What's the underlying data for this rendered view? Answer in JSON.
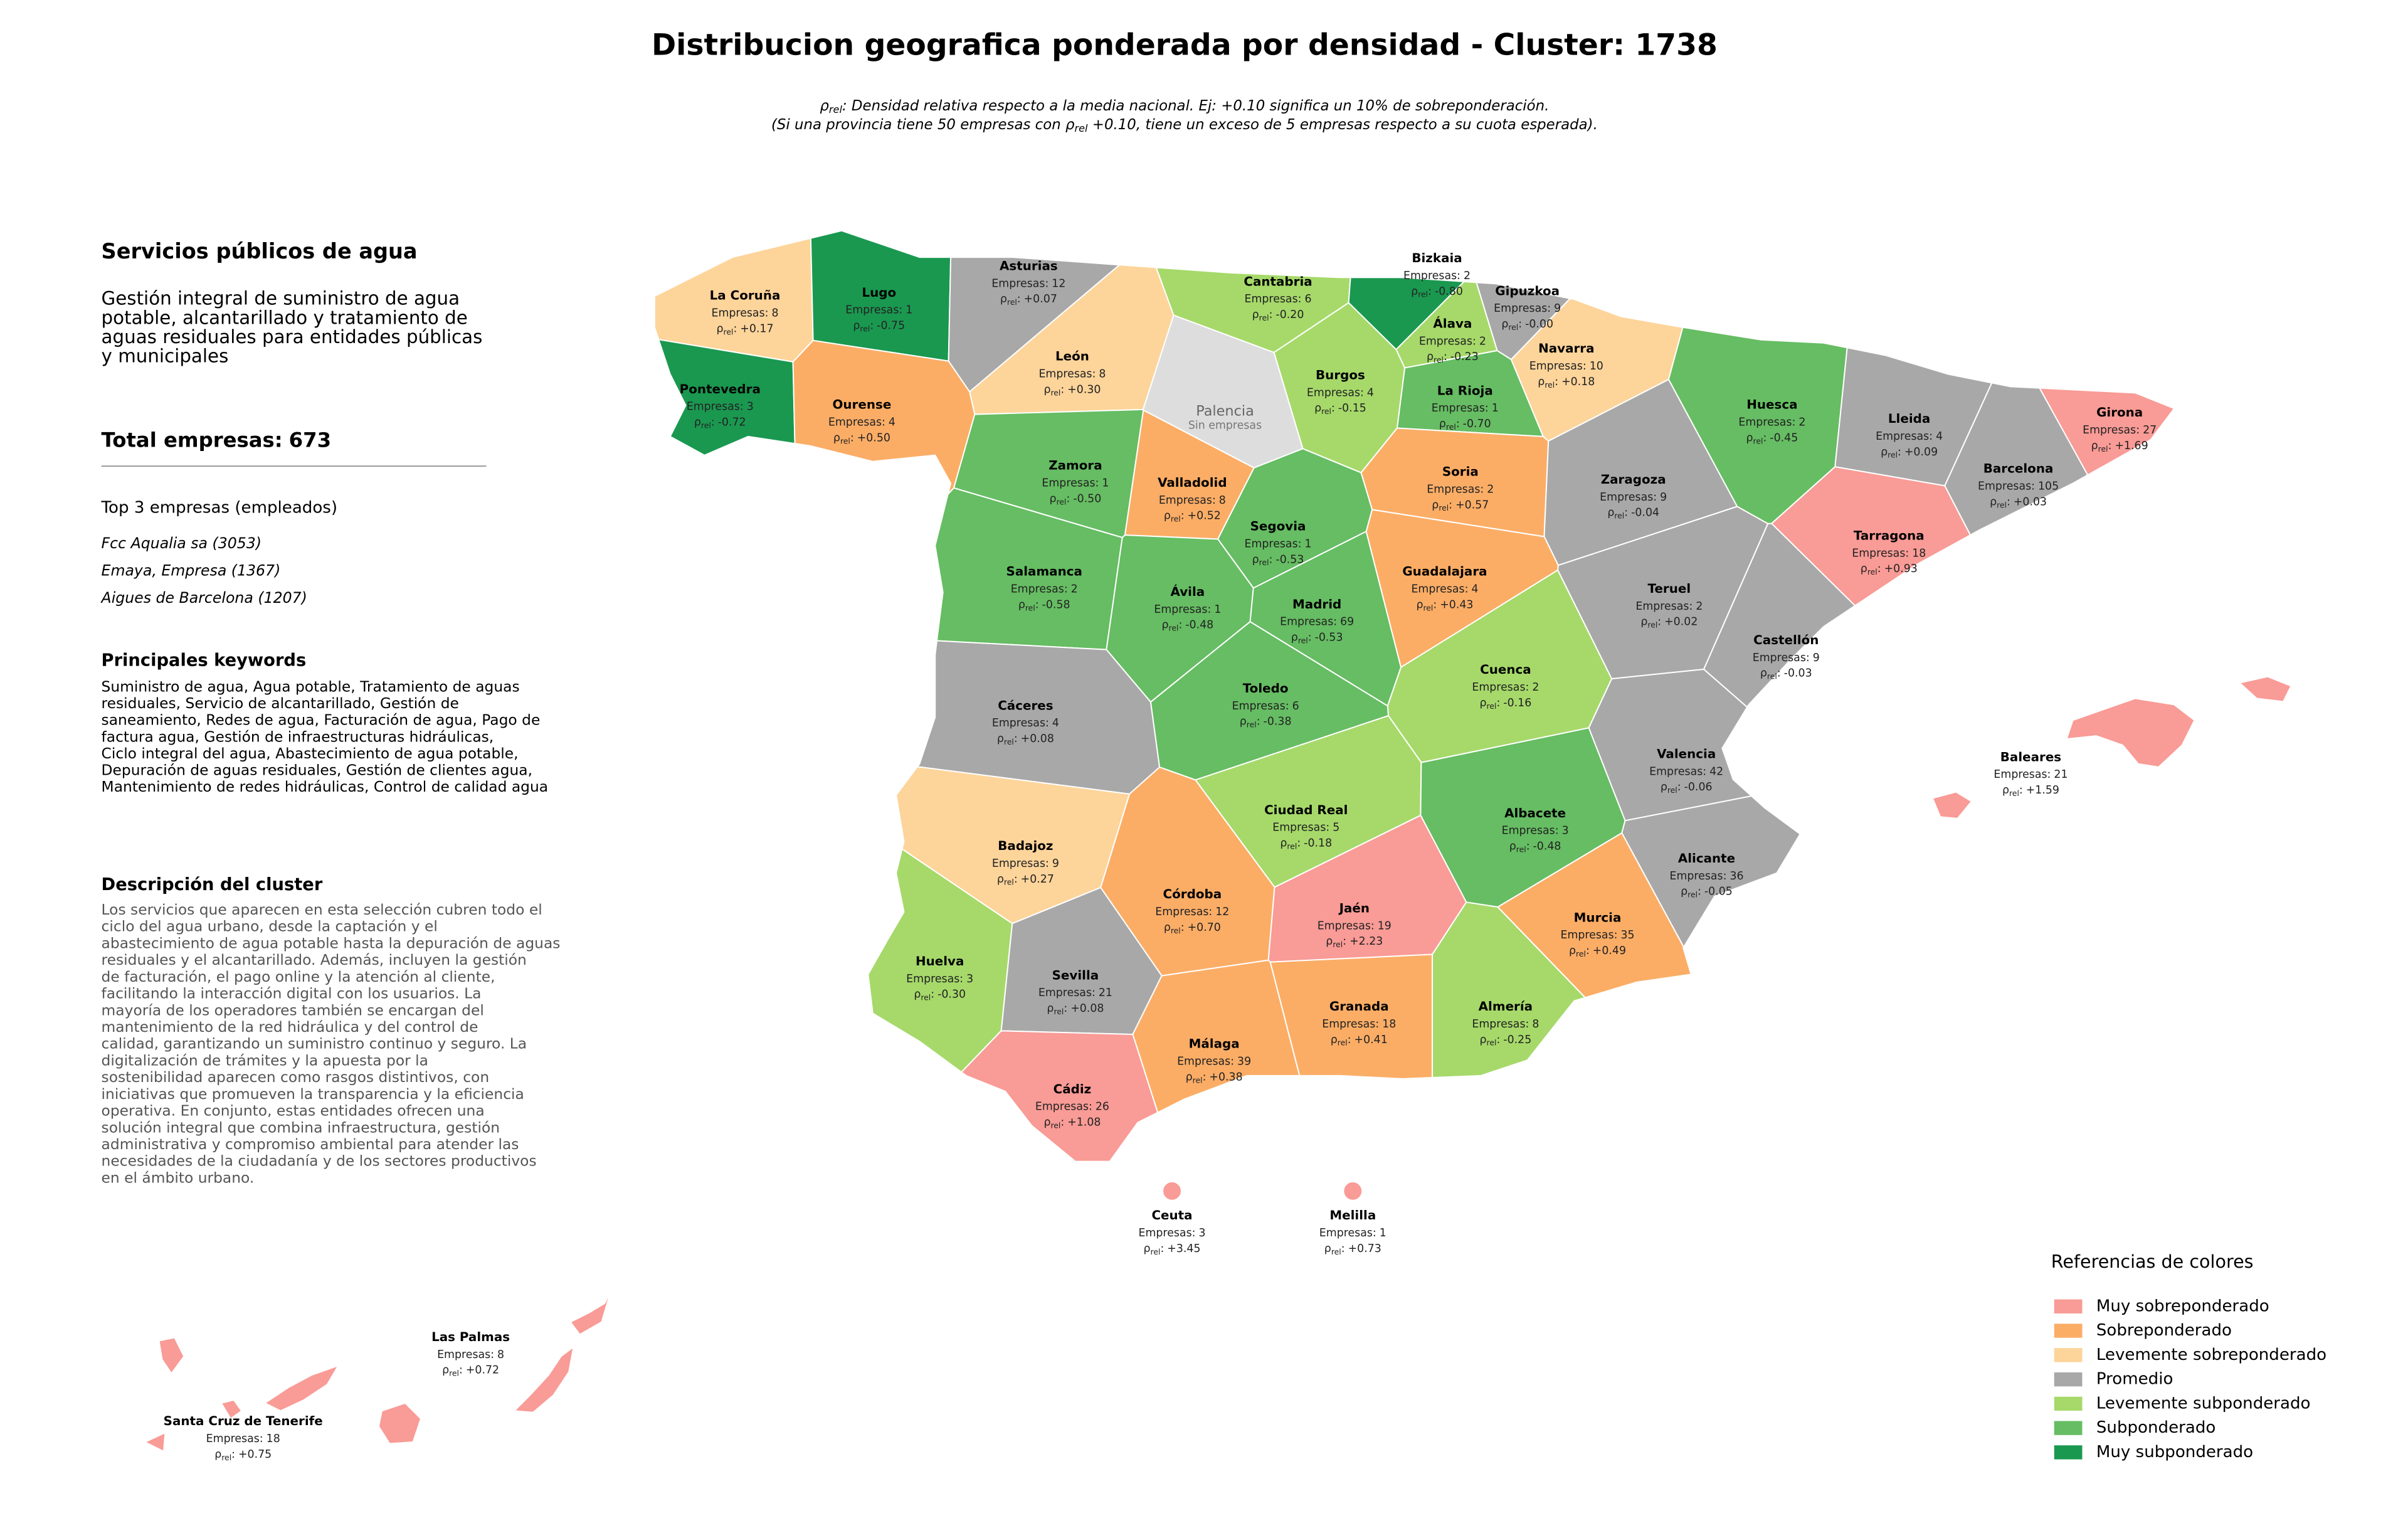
{
  "header": {
    "title": "Distribucion geografica ponderada por densidad - Cluster: 1738",
    "subtitle": [
      {
        "before": "",
        "symbol": "ρ",
        "sub": "rel",
        "after": ": Densidad relativa respecto a la media nacional. Ej: +0.10 significa un 10% de sobreponderación."
      },
      {
        "before": "(Si una provincia tiene 50 empresas con ",
        "symbol": "ρ",
        "sub": "rel",
        "after": " +0.10, tiene un exceso de 5 empresas respecto a su cuota esperada)."
      }
    ]
  },
  "panel": {
    "title": "Servicios públicos de agua",
    "description": [
      "Gestión integral de suministro de agua",
      "potable, alcantarillado y tratamiento de",
      "aguas residuales para entidades públicas",
      "y municipales"
    ],
    "total_label": "Total empresas:",
    "total": 673,
    "top_heading": "Top 3 empresas (empleados)",
    "top": [
      "Fcc Aqualia sa (3053)",
      "Emaya, Empresa (1367)",
      "Aigues de Barcelona (1207)"
    ],
    "keywords_heading": "Principales keywords",
    "keywords": [
      "Suministro de agua, Agua potable, Tratamiento de aguas",
      "residuales, Servicio de alcantarillado, Gestión de",
      "saneamiento, Redes de agua, Facturación de agua, Pago de",
      "factura agua, Gestión de infraestructuras hidráulicas,",
      "Ciclo integral del agua, Abastecimiento de agua potable,",
      "Depuración de aguas residuales, Gestión de clientes agua,",
      "Mantenimiento de redes hidráulicas, Control de calidad agua"
    ],
    "cluster_heading": "Descripción del cluster",
    "cluster_text": [
      "Los servicios que aparecen en esta selección cubren todo el",
      "ciclo del agua urbano, desde la captación y el",
      "abastecimiento de agua potable hasta la depuración de aguas",
      "residuales y el alcantarillado. Además, incluyen la gestión",
      "de facturación, el pago online y la atención al cliente,",
      "facilitando la interacción digital con los usuarios. La",
      "mayoría de los operadores también se encargan del",
      "mantenimiento de la red hidráulica y del control de",
      "calidad, garantizando un suministro continuo y seguro. La",
      "digitalización de trámites y la apuesta por la",
      "sostenibilidad aparecen como rasgos distintivos, con",
      "iniciativas que promueven la transparencia y la eficiencia",
      "operativa. En conjunto, estas entidades ofrecen una",
      "solución integral que combina infraestructura, gestión",
      "administrativa y compromiso ambiental para atender las",
      "necesidades de la ciudadanía y de los sectores productivos",
      "en el ámbito urbano."
    ]
  },
  "map": {
    "empresas_label": "Empresas:",
    "rho_symbol": "ρ",
    "rho_sub": "rel",
    "rho_sep": ":",
    "provinces": [
      {
        "name": "La Coruña",
        "empresas": 8,
        "rho": 0.17,
        "rho_label": "+0.17",
        "color": "#fdd49a"
      },
      {
        "name": "Lugo",
        "empresas": 1,
        "rho": -0.75,
        "rho_label": "-0.75",
        "color": "#1a9850"
      },
      {
        "name": "Asturias",
        "empresas": 12,
        "rho": 0.07,
        "rho_label": "+0.07",
        "color": "#a8a8a8"
      },
      {
        "name": "Cantabria",
        "empresas": 6,
        "rho": -0.2,
        "rho_label": "-0.20",
        "color": "#a6d96a"
      },
      {
        "name": "Bizkaia",
        "empresas": 2,
        "rho": -0.8,
        "rho_label": "-0.80",
        "color": "#1a9850"
      },
      {
        "name": "Gipuzkoa",
        "empresas": 9,
        "rho": 0,
        "rho_label": "-0.00",
        "color": "#a8a8a8"
      },
      {
        "name": "Navarra",
        "empresas": 10,
        "rho": 0.18,
        "rho_label": "+0.18",
        "color": "#fdd49a"
      },
      {
        "name": "Álava",
        "empresas": 2,
        "rho": -0.23,
        "rho_label": "-0.23",
        "color": "#a6d96a"
      },
      {
        "name": "La Rioja",
        "empresas": 1,
        "rho": -0.7,
        "rho_label": "-0.70",
        "color": "#66bd63"
      },
      {
        "name": "Burgos",
        "empresas": 4,
        "rho": -0.15,
        "rho_label": "-0.15",
        "color": "#a6d96a"
      },
      {
        "name": "Palencia",
        "note": "Sin empresas",
        "color": "#dddddd"
      },
      {
        "name": "León",
        "empresas": 8,
        "rho": 0.3,
        "rho_label": "+0.30",
        "color": "#fdd49a"
      },
      {
        "name": "Pontevedra",
        "empresas": 3,
        "rho": -0.72,
        "rho_label": "-0.72",
        "color": "#1a9850"
      },
      {
        "name": "Ourense",
        "empresas": 4,
        "rho": 0.5,
        "rho_label": "+0.50",
        "color": "#fbad66"
      },
      {
        "name": "Zamora",
        "empresas": 1,
        "rho": -0.5,
        "rho_label": "-0.50",
        "color": "#66bd63"
      },
      {
        "name": "Valladolid",
        "empresas": 8,
        "rho": 0.52,
        "rho_label": "+0.52",
        "color": "#fbad66"
      },
      {
        "name": "Soria",
        "empresas": 2,
        "rho": 0.57,
        "rho_label": "+0.57",
        "color": "#fbad66"
      },
      {
        "name": "Huesca",
        "empresas": 2,
        "rho": -0.45,
        "rho_label": "-0.45",
        "color": "#66bd63"
      },
      {
        "name": "Lleida",
        "empresas": 4,
        "rho": 0.09,
        "rho_label": "+0.09",
        "color": "#a8a8a8"
      },
      {
        "name": "Girona",
        "empresas": 27,
        "rho": 1.69,
        "rho_label": "+1.69",
        "color": "#f99b96"
      },
      {
        "name": "Barcelona",
        "empresas": 105,
        "rho": 0.03,
        "rho_label": "+0.03",
        "color": "#a8a8a8"
      },
      {
        "name": "Tarragona",
        "empresas": 18,
        "rho": 0.93,
        "rho_label": "+0.93",
        "color": "#f99b96"
      },
      {
        "name": "Zaragoza",
        "empresas": 9,
        "rho": -0.04,
        "rho_label": "-0.04",
        "color": "#a8a8a8"
      },
      {
        "name": "Segovia",
        "empresas": 1,
        "rho": -0.53,
        "rho_label": "-0.53",
        "color": "#66bd63"
      },
      {
        "name": "Salamanca",
        "empresas": 2,
        "rho": -0.58,
        "rho_label": "-0.58",
        "color": "#66bd63"
      },
      {
        "name": "Ávila",
        "empresas": 1,
        "rho": -0.48,
        "rho_label": "-0.48",
        "color": "#66bd63"
      },
      {
        "name": "Madrid",
        "empresas": 69,
        "rho": -0.53,
        "rho_label": "-0.53",
        "color": "#66bd63"
      },
      {
        "name": "Guadalajara",
        "empresas": 4,
        "rho": 0.43,
        "rho_label": "+0.43",
        "color": "#fbad66"
      },
      {
        "name": "Teruel",
        "empresas": 2,
        "rho": 0.02,
        "rho_label": "+0.02",
        "color": "#a8a8a8"
      },
      {
        "name": "Castellón",
        "empresas": 9,
        "rho": -0.03,
        "rho_label": "-0.03",
        "color": "#a8a8a8"
      },
      {
        "name": "Cuenca",
        "empresas": 2,
        "rho": -0.16,
        "rho_label": "-0.16",
        "color": "#a6d96a"
      },
      {
        "name": "Cáceres",
        "empresas": 4,
        "rho": 0.08,
        "rho_label": "+0.08",
        "color": "#a8a8a8"
      },
      {
        "name": "Toledo",
        "empresas": 6,
        "rho": -0.38,
        "rho_label": "-0.38",
        "color": "#66bd63"
      },
      {
        "name": "Valencia",
        "empresas": 42,
        "rho": -0.06,
        "rho_label": "-0.06",
        "color": "#a8a8a8"
      },
      {
        "name": "Ciudad Real",
        "empresas": 5,
        "rho": -0.18,
        "rho_label": "-0.18",
        "color": "#a6d96a"
      },
      {
        "name": "Albacete",
        "empresas": 3,
        "rho": -0.48,
        "rho_label": "-0.48",
        "color": "#66bd63"
      },
      {
        "name": "Badajoz",
        "empresas": 9,
        "rho": 0.27,
        "rho_label": "+0.27",
        "color": "#fdd49a"
      },
      {
        "name": "Alicante",
        "empresas": 36,
        "rho": -0.05,
        "rho_label": "-0.05",
        "color": "#a8a8a8"
      },
      {
        "name": "Córdoba",
        "empresas": 12,
        "rho": 0.7,
        "rho_label": "+0.70",
        "color": "#fbad66"
      },
      {
        "name": "Jaén",
        "empresas": 19,
        "rho": 2.23,
        "rho_label": "+2.23",
        "color": "#f99b96"
      },
      {
        "name": "Murcia",
        "empresas": 35,
        "rho": 0.49,
        "rho_label": "+0.49",
        "color": "#fbad66"
      },
      {
        "name": "Huelva",
        "empresas": 3,
        "rho": -0.3,
        "rho_label": "-0.30",
        "color": "#a6d96a"
      },
      {
        "name": "Sevilla",
        "empresas": 21,
        "rho": 0.08,
        "rho_label": "+0.08",
        "color": "#a8a8a8"
      },
      {
        "name": "Granada",
        "empresas": 18,
        "rho": 0.41,
        "rho_label": "+0.41",
        "color": "#fbad66"
      },
      {
        "name": "Almería",
        "empresas": 8,
        "rho": -0.25,
        "rho_label": "-0.25",
        "color": "#a6d96a"
      },
      {
        "name": "Málaga",
        "empresas": 39,
        "rho": 0.38,
        "rho_label": "+0.38",
        "color": "#fbad66"
      },
      {
        "name": "Cádiz",
        "empresas": 26,
        "rho": 1.08,
        "rho_label": "+1.08",
        "color": "#f99b96"
      },
      {
        "name": "Baleares",
        "empresas": 21,
        "rho": 1.59,
        "rho_label": "+1.59",
        "color": "#f99b96"
      },
      {
        "name": "Las Palmas",
        "empresas": 8,
        "rho": 0.72,
        "rho_label": "+0.72",
        "color": "#f99b96"
      },
      {
        "name": "Santa Cruz de Tenerife",
        "empresas": 18,
        "rho": 0.75,
        "rho_label": "+0.75",
        "color": "#f99b96"
      },
      {
        "name": "Ceuta",
        "empresas": 3,
        "rho": 3.45,
        "rho_label": "+3.45",
        "color": "#f99b96"
      },
      {
        "name": "Melilla",
        "empresas": 1,
        "rho": 0.73,
        "rho_label": "+0.73",
        "color": "#f99b96"
      }
    ]
  },
  "legend": {
    "title": "Referencias de colores",
    "items": [
      {
        "label": "Muy sobreponderado",
        "color": "#f99b96"
      },
      {
        "label": "Sobreponderado",
        "color": "#fbad66"
      },
      {
        "label": "Levemente sobreponderado",
        "color": "#fdd49a"
      },
      {
        "label": "Promedio",
        "color": "#a8a8a8"
      },
      {
        "label": "Levemente subponderado",
        "color": "#a6d96a"
      },
      {
        "label": "Subponderado",
        "color": "#66bd63"
      },
      {
        "label": "Muy subponderado",
        "color": "#1a9850"
      }
    ]
  }
}
